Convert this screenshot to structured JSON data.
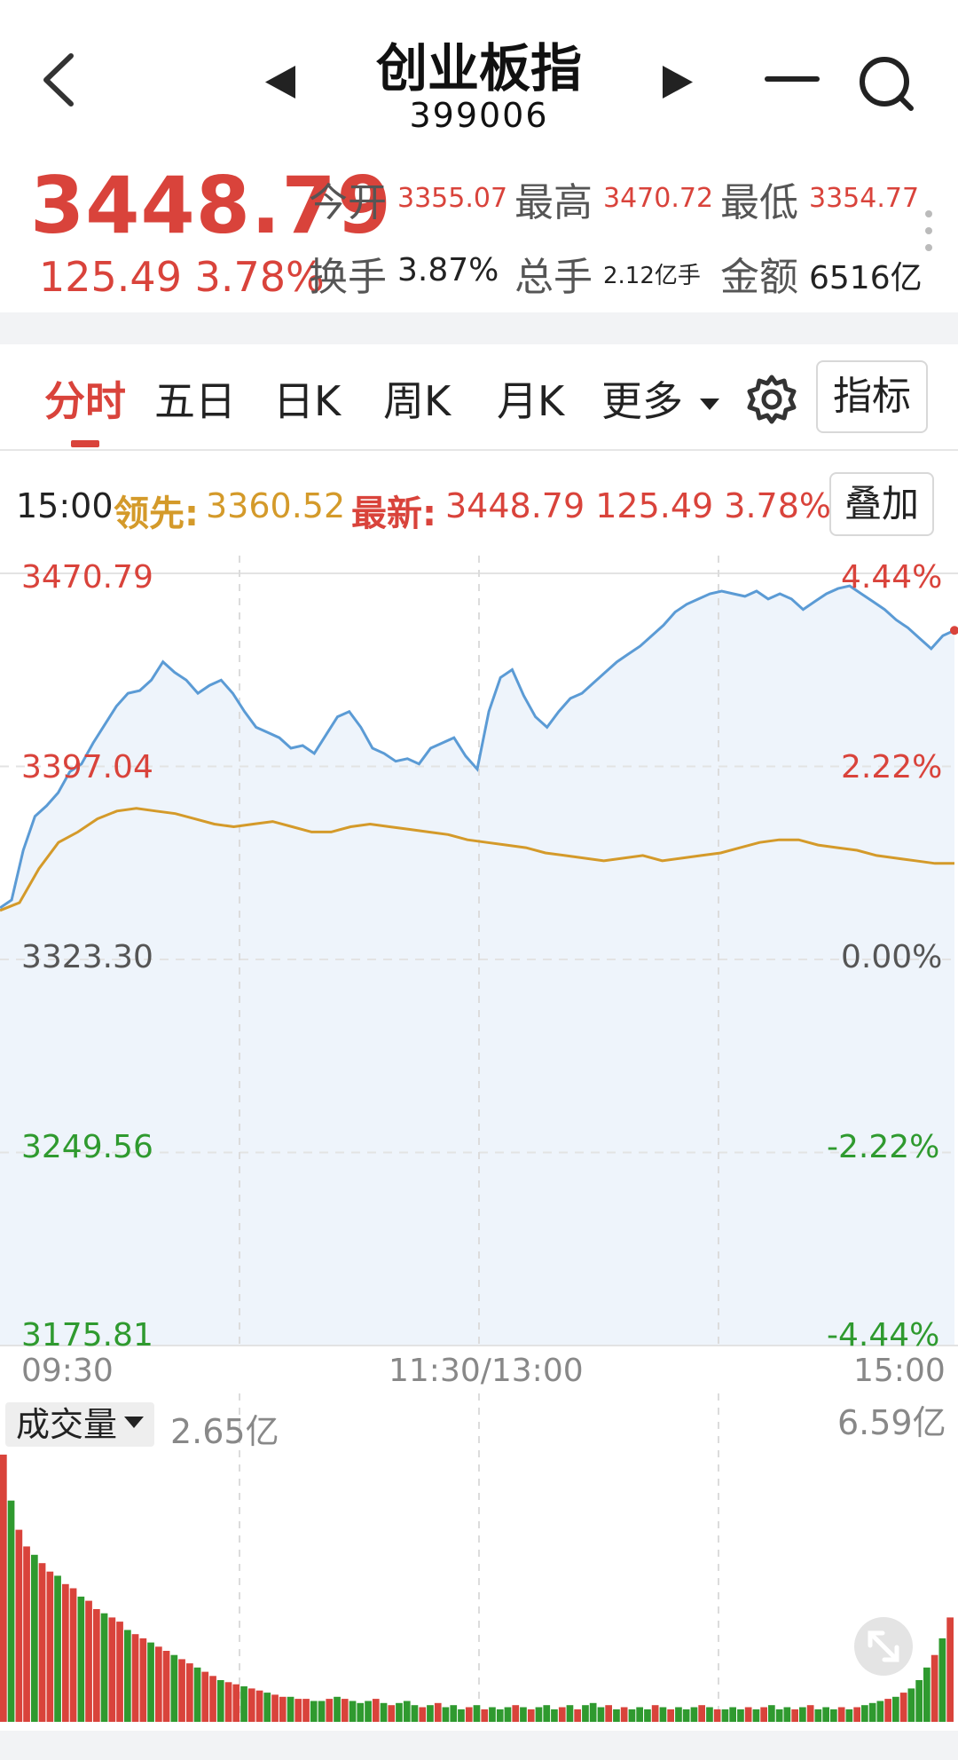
{
  "header": {
    "title": "创业板指",
    "code": "399006"
  },
  "quote": {
    "price": "3448.79",
    "change": "125.49  3.78%",
    "open_label": "今开",
    "open_value": "3355.07",
    "high_label": "最高",
    "high_value": "3470.72",
    "low_label": "最低",
    "low_value": "3354.77",
    "turnover_label": "换手",
    "turnover_value": "3.87%",
    "volume_label": "总手",
    "volume_value": "2.12亿手",
    "amount_label": "金额",
    "amount_value": "6516亿"
  },
  "tabs": [
    {
      "label": "分时",
      "active": true
    },
    {
      "label": "五日"
    },
    {
      "label": "日K"
    },
    {
      "label": "周K"
    },
    {
      "label": "月K"
    },
    {
      "label": "更多"
    }
  ],
  "buttons": {
    "indicators": "指标",
    "overlay": "叠加"
  },
  "infoline": {
    "time": "15:00",
    "lead_label": "领先:",
    "lead_value": "3360.52",
    "new_label": "最新:",
    "new_value": "3448.79 125.49 3.78%"
  },
  "colors": {
    "up": "#d9433b",
    "down": "#2f9a2f",
    "price_line": "#5b9bd5",
    "lead_line": "#d49a2a",
    "fill": "#eef4fb"
  },
  "chart_data": {
    "type": "line",
    "y_left_labels": [
      "3470.79",
      "3397.04",
      "3323.30",
      "3249.56",
      "3175.81"
    ],
    "y_right_labels": [
      "4.44%",
      "2.22%",
      "0.00%",
      "-2.22%",
      "-4.44%"
    ],
    "ylim": [
      3175.81,
      3470.79
    ],
    "x_labels": [
      "09:30",
      "11:30/13:00",
      "15:00"
    ],
    "series": [
      {
        "name": "最新",
        "color": "#5b9bd5",
        "values": [
          3343,
          3346,
          3365,
          3378,
          3382,
          3387,
          3395,
          3398,
          3406,
          3413,
          3420,
          3425,
          3426,
          3430,
          3437,
          3433,
          3430,
          3425,
          3428,
          3430,
          3425,
          3418,
          3412,
          3410,
          3408,
          3404,
          3405,
          3402,
          3409,
          3416,
          3418,
          3412,
          3404,
          3402,
          3399,
          3400,
          3398,
          3404,
          3406,
          3408,
          3401,
          3396,
          3418,
          3431,
          3434,
          3424,
          3416,
          3412,
          3418,
          3423,
          3425,
          3429,
          3433,
          3437,
          3440,
          3443,
          3447,
          3451,
          3456,
          3459,
          3461,
          3463,
          3464,
          3463,
          3462,
          3464,
          3461,
          3463,
          3461,
          3457,
          3460,
          3463,
          3465,
          3466,
          3463,
          3460,
          3457,
          3453,
          3450,
          3446,
          3442,
          3447,
          3449
        ]
      },
      {
        "name": "领先",
        "color": "#d49a2a",
        "values": [
          3342,
          3345,
          3358,
          3368,
          3372,
          3377,
          3380,
          3381,
          3380,
          3379,
          3377,
          3375,
          3374,
          3375,
          3376,
          3374,
          3372,
          3372,
          3374,
          3375,
          3374,
          3373,
          3372,
          3371,
          3369,
          3368,
          3367,
          3366,
          3364,
          3363,
          3362,
          3361,
          3362,
          3363,
          3361,
          3362,
          3363,
          3364,
          3366,
          3368,
          3369,
          3369,
          3367,
          3366,
          3365,
          3363,
          3362,
          3361,
          3360,
          3360
        ]
      }
    ],
    "volume": {
      "label": "成交量",
      "current": "2.65亿",
      "max": "6.59亿",
      "bars": [
        6.4,
        5.3,
        4.6,
        4.2,
        4.0,
        3.8,
        3.6,
        3.5,
        3.3,
        3.2,
        3.0,
        2.9,
        2.7,
        2.6,
        2.5,
        2.4,
        2.2,
        2.1,
        2.0,
        1.9,
        1.8,
        1.7,
        1.6,
        1.5,
        1.4,
        1.3,
        1.2,
        1.1,
        1.0,
        0.95,
        0.9,
        0.85,
        0.8,
        0.75,
        0.7,
        0.65,
        0.6,
        0.6,
        0.55,
        0.55,
        0.5,
        0.5,
        0.55,
        0.6,
        0.55,
        0.5,
        0.45,
        0.5,
        0.55,
        0.45,
        0.4,
        0.45,
        0.5,
        0.4,
        0.35,
        0.4,
        0.45,
        0.35,
        0.4,
        0.3,
        0.35,
        0.4,
        0.3,
        0.35,
        0.3,
        0.35,
        0.4,
        0.35,
        0.3,
        0.35,
        0.4,
        0.3,
        0.35,
        0.4,
        0.3,
        0.4,
        0.45,
        0.35,
        0.4,
        0.3,
        0.35,
        0.3,
        0.35,
        0.3,
        0.4,
        0.35,
        0.3,
        0.35,
        0.3,
        0.35,
        0.4,
        0.35,
        0.3,
        0.3,
        0.35,
        0.3,
        0.35,
        0.3,
        0.35,
        0.4,
        0.3,
        0.35,
        0.3,
        0.35,
        0.4,
        0.3,
        0.35,
        0.3,
        0.35,
        0.3,
        0.35,
        0.4,
        0.45,
        0.5,
        0.55,
        0.6,
        0.7,
        0.8,
        1.0,
        1.3,
        1.6,
        2.0,
        2.5
      ]
    }
  }
}
